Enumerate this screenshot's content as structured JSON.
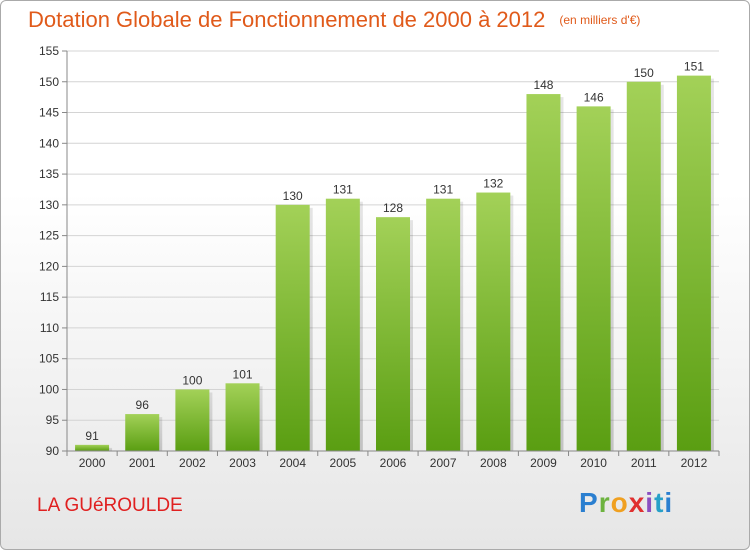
{
  "title": "Dotation Globale de Fonctionnement de 2000 à 2012",
  "subtitle": "(en milliers d'€)",
  "commune": "LA GUéROULDE",
  "logo": {
    "letters": [
      "P",
      "r",
      "o",
      "x",
      "i",
      "t",
      "i"
    ]
  },
  "colors": {
    "bar_top": "#a3d158",
    "bar_bottom": "#5a9e12",
    "title": "#e05a1a",
    "commune": "#e02020"
  },
  "chart_data": {
    "type": "bar",
    "categories": [
      "2000",
      "2001",
      "2002",
      "2003",
      "2004",
      "2005",
      "2006",
      "2007",
      "2008",
      "2009",
      "2010",
      "2011",
      "2012"
    ],
    "values": [
      91,
      96,
      100,
      101,
      130,
      131,
      128,
      131,
      132,
      148,
      146,
      150,
      151
    ],
    "value_labels": [
      "91",
      "96",
      "100",
      "101",
      "130",
      "131",
      "128",
      "131",
      "132",
      "148",
      "146",
      "150",
      "151"
    ],
    "title": "Dotation Globale de Fonctionnement de 2000 à 2012",
    "xlabel": "",
    "ylabel": "",
    "ylim": [
      90,
      155
    ],
    "yticks": [
      90,
      95,
      100,
      105,
      110,
      115,
      120,
      125,
      130,
      135,
      140,
      145,
      150,
      155
    ],
    "grid": true
  }
}
